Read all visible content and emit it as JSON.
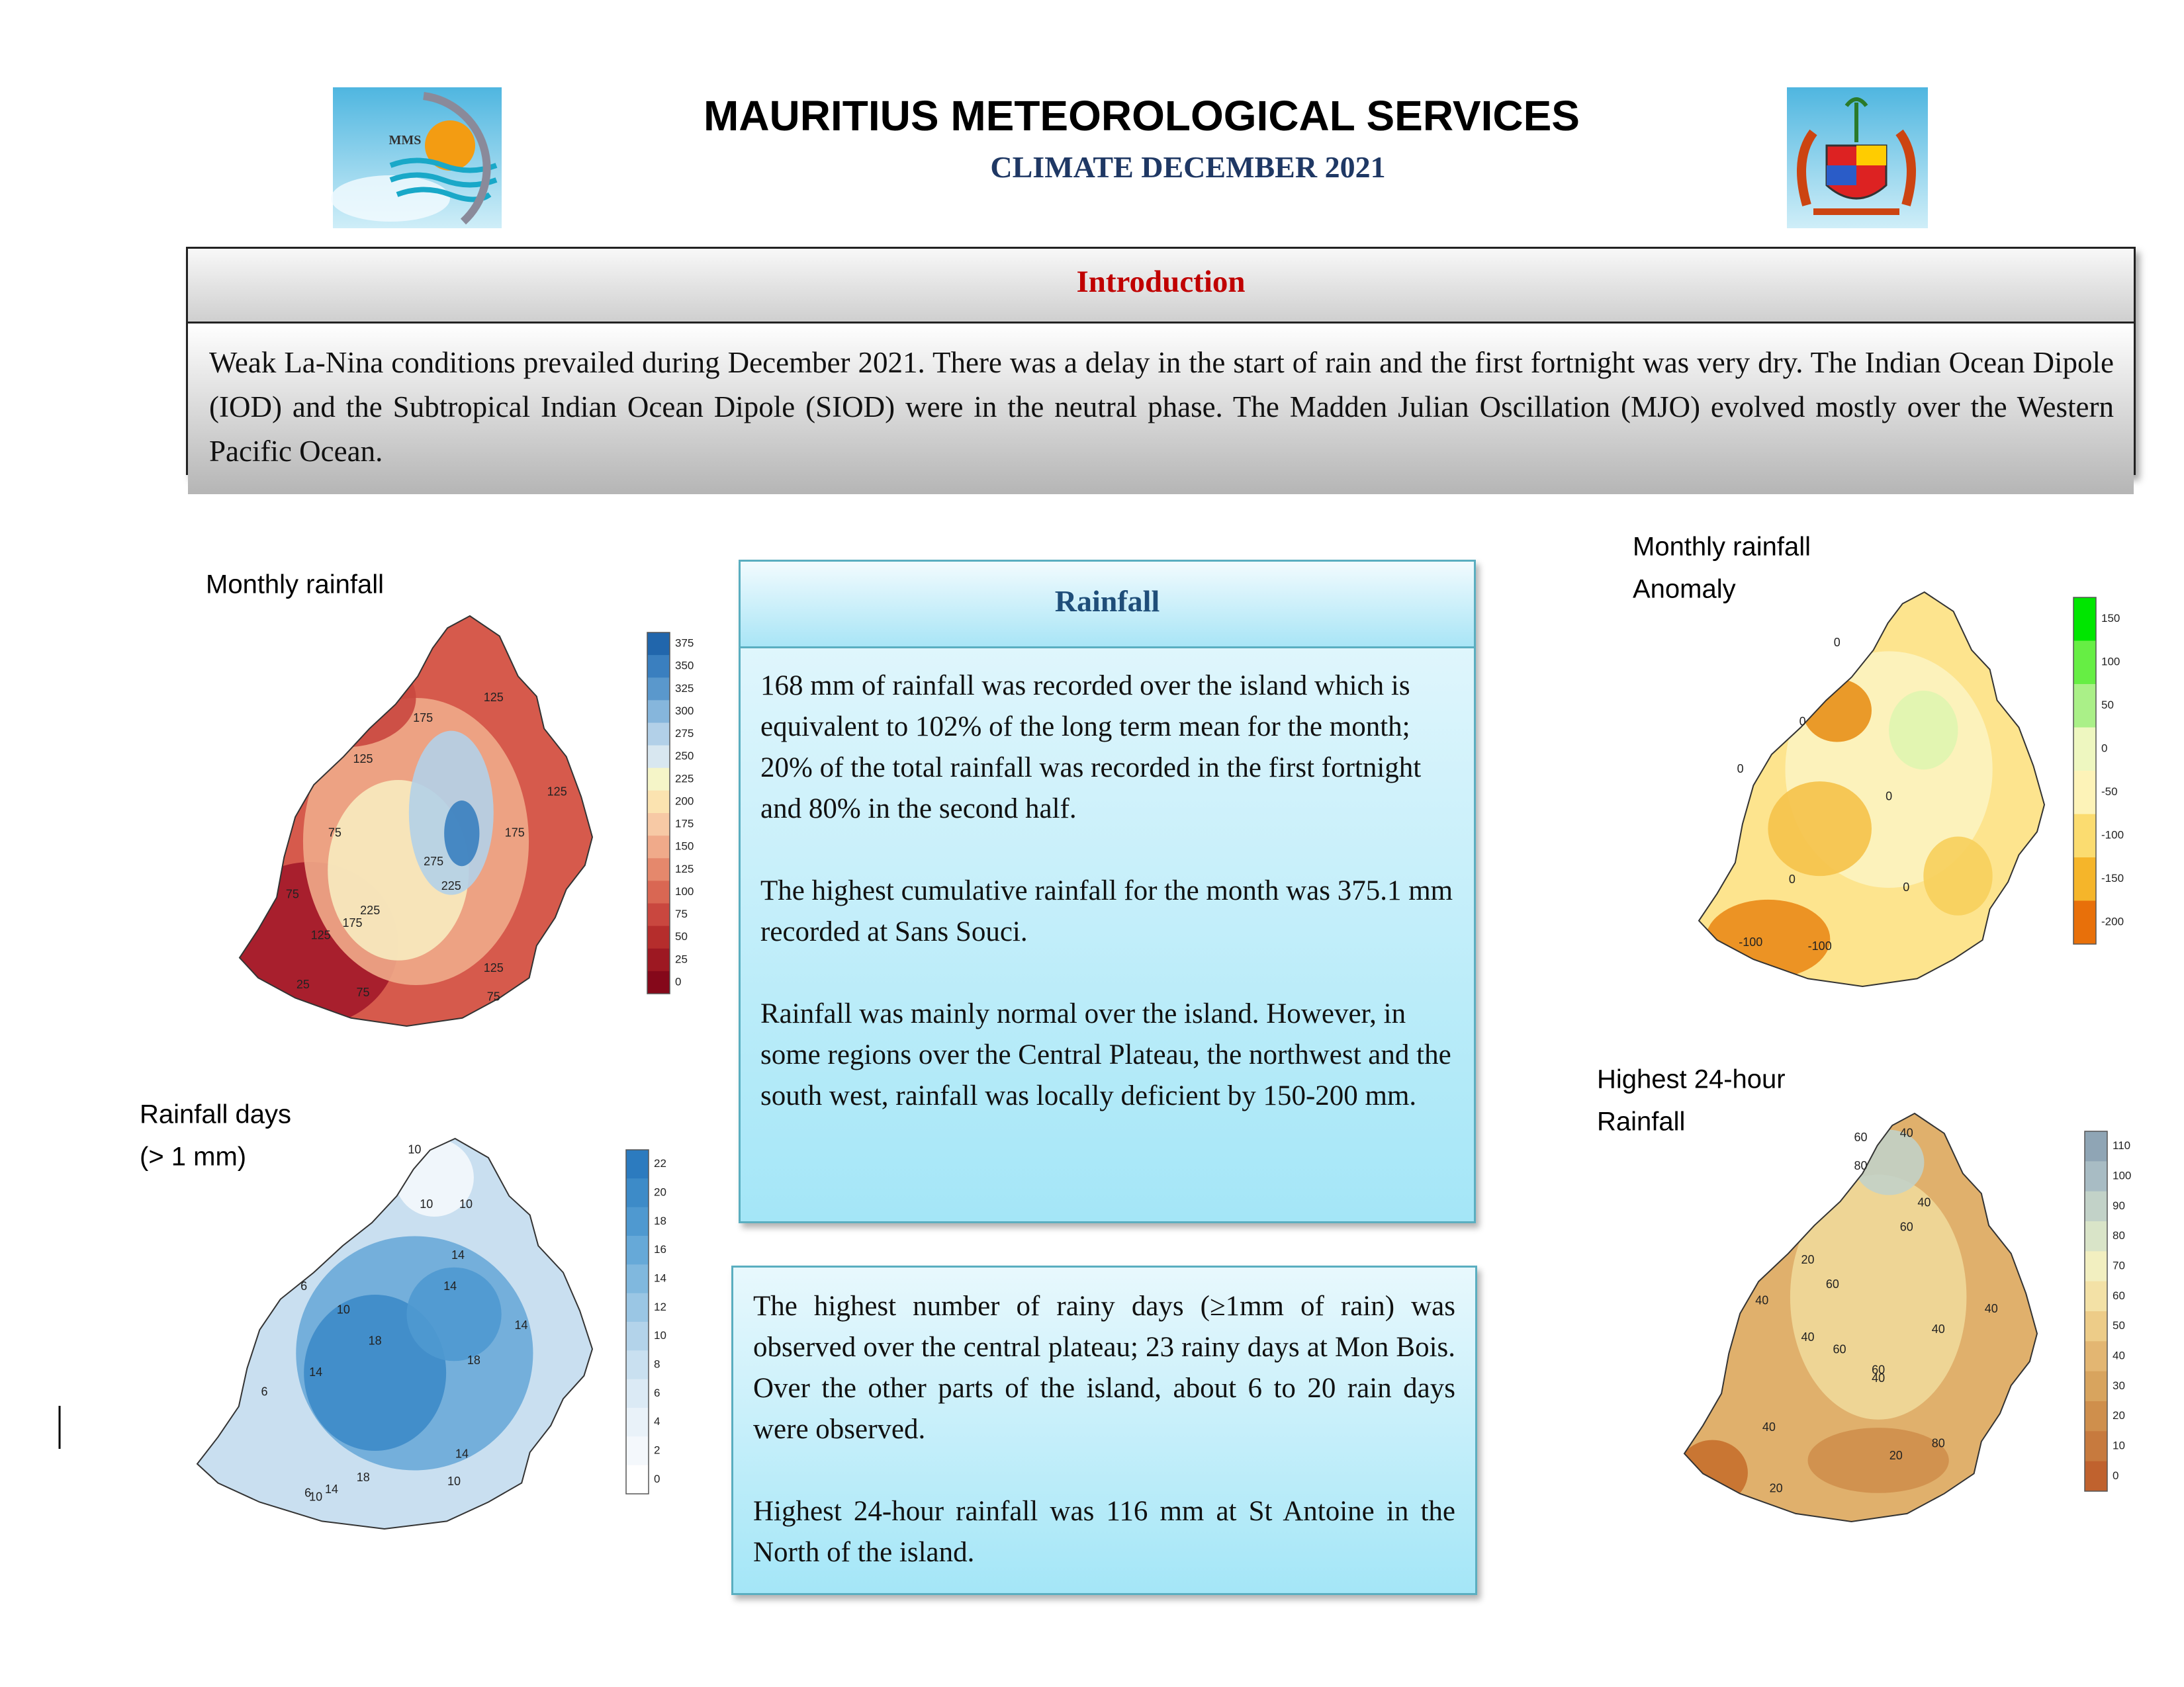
{
  "header": {
    "title": "MAURITIUS METEOROLOGICAL SERVICES",
    "subtitle": "CLIMATE DECEMBER 2021",
    "logo_text": "MMS"
  },
  "introduction": {
    "heading": "Introduction",
    "text": "Weak La-Nina conditions prevailed during December 2021. There was a delay in the start of rain and the first fortnight was very dry. The Indian Ocean Dipole (IOD) and the Subtropical Indian Ocean Dipole (SIOD) were in the neutral phase. The Madden Julian Oscillation (MJO) evolved mostly over the Western Pacific Ocean."
  },
  "rainfall_box": {
    "heading": "Rainfall",
    "paragraphs": [
      "168 mm of rainfall was recorded over the island which is equivalent to 102% of the long term mean for the month; 20% of the total rainfall was recorded in the first fortnight and 80% in the second half.",
      "The highest cumulative rainfall for the month was 375.1 mm recorded at Sans Souci.",
      "Rainfall was mainly normal over the island. However, in some regions over the Central Plateau, the northwest  and the south west, rainfall was locally deficient by 150-200 mm."
    ]
  },
  "rainy_days_box": {
    "paragraphs": [
      "The highest number of rainy days (≥1mm of rain) was observed over the central plateau; 23 rainy days at Mon Bois. Over the other parts of the island, about 6 to 20 rain days were observed.",
      "Highest 24-hour rainfall was 116 mm at St Antoine in the North of the island."
    ]
  },
  "maps": [
    {
      "title_lines": [
        "Monthly rainfall"
      ],
      "colorbar_labels": [
        375,
        350,
        325,
        300,
        275,
        250,
        225,
        200,
        175,
        150,
        125,
        100,
        75,
        50,
        25,
        0
      ],
      "contour_labels": [
        125,
        175,
        125,
        125,
        175,
        75,
        275,
        225,
        75,
        125,
        175,
        225,
        125,
        75,
        25,
        75
      ]
    },
    {
      "title_lines": [
        "Rainfall days",
        "(> 1 mm)"
      ],
      "colorbar_labels": [
        22,
        20,
        18,
        16,
        14,
        12,
        10,
        8,
        6,
        4,
        2,
        0
      ],
      "contour_labels": [
        10,
        10,
        10,
        14,
        14,
        6,
        10,
        18,
        18,
        14,
        14,
        14,
        10,
        6,
        18,
        14,
        10,
        6
      ]
    },
    {
      "title_lines": [
        "Monthly rainfall",
        "Anomaly"
      ],
      "colorbar_labels": [
        150,
        100,
        50,
        0,
        -50,
        -100,
        -150,
        -200
      ],
      "contour_labels": [
        0,
        0,
        0,
        0,
        0,
        0,
        -100,
        -100
      ]
    },
    {
      "title_lines": [
        "Highest 24-hour",
        "Rainfall"
      ],
      "colorbar_labels": [
        110,
        100,
        90,
        80,
        70,
        60,
        50,
        40,
        30,
        20,
        10,
        0
      ],
      "contour_labels": [
        60,
        40,
        80,
        40,
        60,
        20,
        60,
        40,
        40,
        60,
        40,
        40,
        60,
        40,
        80,
        20,
        40,
        20
      ]
    }
  ]
}
